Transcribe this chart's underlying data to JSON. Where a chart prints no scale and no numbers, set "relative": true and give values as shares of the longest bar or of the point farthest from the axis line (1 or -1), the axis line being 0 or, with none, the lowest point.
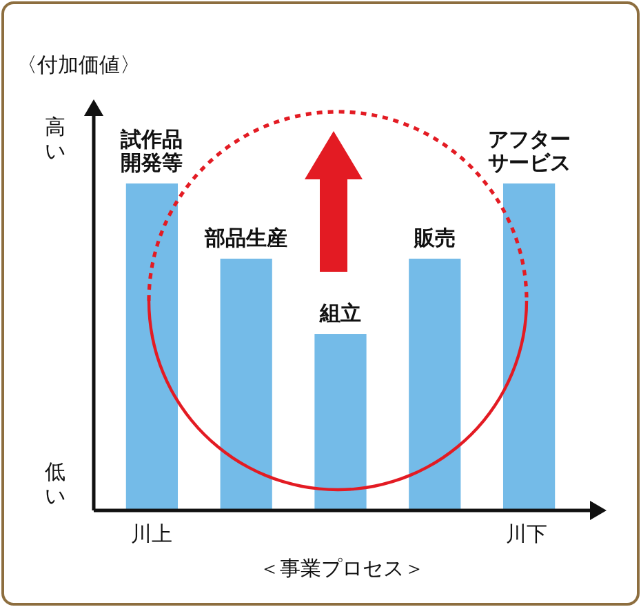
{
  "chart_data": {
    "type": "bar",
    "relative": true,
    "categories": [
      "試作品開発等",
      "部品生産",
      "組立",
      "販売",
      "アフターサービス"
    ],
    "values": [
      1,
      0.77,
      0.54,
      0.77,
      1
    ],
    "color": "#74bbe8",
    "xlabel": "＜事業プロセス＞",
    "ylabel": "〈付加価値〉",
    "annotations": [
      "高い",
      "低い",
      "川上",
      "川下"
    ]
  }
}
